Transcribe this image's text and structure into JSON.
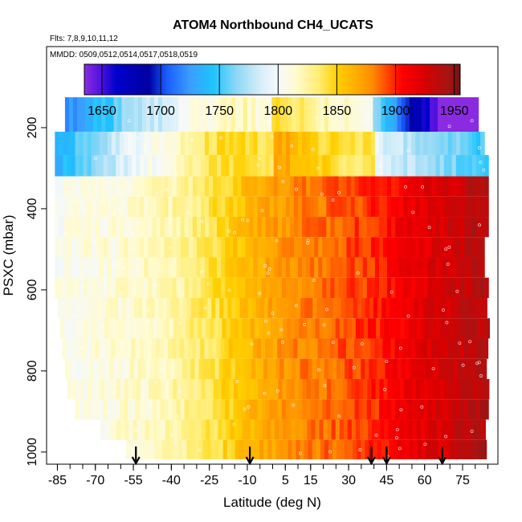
{
  "chart_data": {
    "type": "heatmap",
    "title": "ATOM4 Northbound CH4_UCATS",
    "flights_label": "Flts: 7,8,9,10,11,12",
    "dates_label": "MMDD: 0509,0512,0514,0517,0518,0519",
    "xlabel": "Latitude (deg N)",
    "ylabel": "PSXC (mbar)",
    "xlim": [
      -88,
      88
    ],
    "ylim": [
      1030,
      0
    ],
    "x_ticks": [
      -85,
      -70,
      -55,
      -40,
      -25,
      -10,
      5,
      15,
      30,
      45,
      60,
      75
    ],
    "x_minor_step": 5,
    "y_ticks": [
      200,
      400,
      600,
      800,
      1000
    ],
    "colorbar": {
      "min": 1635,
      "max": 1955,
      "ticks": [
        1650,
        1700,
        1750,
        1800,
        1850,
        1900,
        1950
      ],
      "stops": [
        [
          1635,
          "#8a2be2"
        ],
        [
          1650,
          "#4b0fe0"
        ],
        [
          1662,
          "#0000cd"
        ],
        [
          1690,
          "#0000a0"
        ],
        [
          1705,
          "#1a5cff"
        ],
        [
          1725,
          "#3b9dff"
        ],
        [
          1745,
          "#1ec5ff"
        ],
        [
          1765,
          "#90d8f5"
        ],
        [
          1785,
          "#d5eefa"
        ],
        [
          1800,
          "#f5f9fa"
        ],
        [
          1815,
          "#fffbd0"
        ],
        [
          1835,
          "#ffed70"
        ],
        [
          1850,
          "#ffd000"
        ],
        [
          1865,
          "#ffb000"
        ],
        [
          1880,
          "#ff8c00"
        ],
        [
          1893,
          "#ff4500"
        ],
        [
          1905,
          "#ff0000"
        ],
        [
          1925,
          "#d80000"
        ],
        [
          1945,
          "#a51515"
        ],
        [
          1955,
          "#7a1010"
        ]
      ]
    },
    "pressure_levels": [
      180,
      240,
      295,
      345,
      395,
      445,
      495,
      545,
      595,
      645,
      695,
      745,
      795,
      845,
      895,
      945,
      995
    ],
    "latitude_extent": [
      [
        -82,
        80
      ],
      [
        -86,
        82
      ],
      [
        -86,
        84
      ],
      [
        -86,
        84
      ],
      [
        -86,
        84
      ],
      [
        -86,
        84
      ],
      [
        -86,
        83
      ],
      [
        -86,
        83
      ],
      [
        -86,
        84
      ],
      [
        -85,
        84
      ],
      [
        -84,
        84
      ],
      [
        -83,
        84
      ],
      [
        -82,
        84
      ],
      [
        -81,
        84
      ],
      [
        -78,
        84
      ],
      [
        -68,
        84
      ],
      [
        -58,
        84
      ]
    ],
    "ch4_profile": {
      "latitude": [
        -88,
        -75,
        -60,
        -45,
        -30,
        -20,
        -10,
        0,
        10,
        20,
        30,
        40,
        50,
        60,
        70,
        80,
        88
      ],
      "mixing_ratio": [
        1805,
        1808,
        1812,
        1818,
        1832,
        1845,
        1860,
        1872,
        1880,
        1885,
        1892,
        1898,
        1910,
        1920,
        1928,
        1938,
        1940
      ]
    },
    "release_markers": [
      -54,
      -9,
      39,
      45,
      67
    ]
  }
}
